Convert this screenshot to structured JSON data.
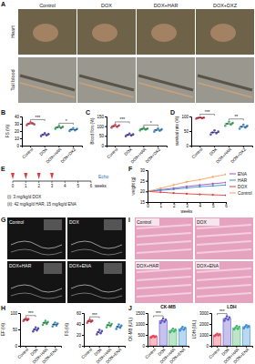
{
  "figure": {
    "panel_labels": [
      "A",
      "B",
      "C",
      "D",
      "E",
      "F",
      "G",
      "H",
      "I",
      "J"
    ],
    "zebrafish": {
      "columns": [
        "Control",
        "DOX",
        "DOX+HAR",
        "DOX+DXZ"
      ],
      "rows": [
        "Heart",
        "Tail blood"
      ]
    },
    "schedule": {
      "ticks": [
        0,
        1,
        2,
        3,
        4,
        5,
        6
      ],
      "xlabel": "weeks",
      "dox_weeks": [
        0,
        1,
        2,
        3
      ],
      "end_label": "Echo",
      "notes": [
        "(i): 3 mg/kg/d DOX",
        "(ii): 42 mg/kg/d HAR, 15 mg/kg/d ENA"
      ]
    },
    "echo": {
      "labels": [
        "Control",
        "DOX",
        "DOX+HAR",
        "DOX+ENA"
      ]
    },
    "histology": {
      "labels": [
        "Control",
        "DOX",
        "DOX+HAR",
        "DOX+ENA"
      ]
    }
  },
  "chart_data": [
    {
      "type": "dot",
      "ylabel": "FS (%)",
      "categories": [
        "Control",
        "DOX",
        "DOX+HAR",
        "DOX+DXZ"
      ],
      "values": [
        30,
        15,
        25,
        22
      ],
      "points": [
        [
          28,
          30,
          32,
          31,
          29
        ],
        [
          13,
          15,
          17,
          14,
          16
        ],
        [
          23,
          25,
          27,
          24,
          26
        ],
        [
          20,
          22,
          24,
          21,
          23
        ]
      ],
      "colors": [
        "#e8455a",
        "#5b4fc7",
        "#3fb56b",
        "#3a8fd6"
      ],
      "ylim": [
        0,
        40
      ],
      "yticks": [
        0,
        10,
        20,
        30,
        40
      ],
      "annotations": [
        {
          "text": "***",
          "between": [
            0,
            1
          ]
        },
        {
          "text": "*",
          "between": [
            2,
            3
          ]
        }
      ]
    },
    {
      "type": "dot",
      "ylabel": "Blood flow (%)",
      "categories": [
        "Control",
        "DOX",
        "DOX+HAR",
        "DOX+DXZ"
      ],
      "values": [
        100,
        55,
        85,
        80
      ],
      "points": [
        [
          92,
          100,
          108,
          96,
          104
        ],
        [
          48,
          55,
          62,
          52,
          58
        ],
        [
          78,
          85,
          92,
          82,
          88
        ],
        [
          72,
          80,
          88,
          76,
          84
        ]
      ],
      "colors": [
        "#e8455a",
        "#5b4fc7",
        "#3fb56b",
        "#3a8fd6"
      ],
      "ylim": [
        0,
        150
      ],
      "yticks": [
        0,
        50,
        100,
        150
      ],
      "annotations": [
        {
          "text": "***",
          "between": [
            0,
            1
          ]
        },
        {
          "text": "*",
          "between": [
            2,
            3
          ]
        }
      ]
    },
    {
      "type": "dot",
      "ylabel": "survival rate (%)",
      "categories": [
        "Control",
        "DOX",
        "DOX+HAR",
        "DOX+DXZ"
      ],
      "values": [
        95,
        45,
        75,
        65
      ],
      "points": [
        [
          92,
          95,
          98,
          94,
          96
        ],
        [
          38,
          45,
          52,
          42,
          48
        ],
        [
          68,
          75,
          82,
          72,
          78
        ],
        [
          58,
          65,
          72,
          62,
          68
        ]
      ],
      "colors": [
        "#e8455a",
        "#5b4fc7",
        "#3fb56b",
        "#3a8fd6"
      ],
      "ylim": [
        0,
        100
      ],
      "yticks": [
        0,
        50,
        100
      ],
      "annotations": [
        {
          "text": "***",
          "between": [
            0,
            1
          ]
        },
        {
          "text": "**",
          "between": [
            2,
            3
          ]
        }
      ]
    },
    {
      "type": "line",
      "ylabel": "weight (g)",
      "xlabel": "weeks",
      "x": [
        0,
        1,
        2,
        3,
        4,
        5,
        6
      ],
      "xlim": [
        0,
        6
      ],
      "xticks": [
        0,
        1,
        2,
        3,
        4,
        5,
        6
      ],
      "ylim": [
        15,
        30
      ],
      "yticks": [
        15,
        20,
        25,
        30
      ],
      "legend": "right",
      "marker": "circle",
      "series": [
        {
          "name": "ENA",
          "color": "#9b59b6",
          "values": [
            20,
            20.8,
            21.5,
            22.3,
            23,
            23.6,
            24.2
          ]
        },
        {
          "name": "HAR",
          "color": "#3a8fd6",
          "values": [
            20,
            20.5,
            21,
            21.6,
            22.2,
            22.6,
            23
          ]
        },
        {
          "name": "DOX",
          "color": "#e03c3c",
          "values": [
            20,
            19.6,
            19.2,
            18.9,
            18.6,
            18.4,
            18.2
          ]
        },
        {
          "name": "Control",
          "color": "#f4a261",
          "values": [
            20,
            21.5,
            23,
            24.5,
            25.5,
            26.8,
            28
          ]
        }
      ]
    },
    {
      "type": "dot",
      "ylabel": "EF (%)",
      "categories": [
        "Control",
        "DOX",
        "DOX+HAR",
        "DOX+ENA"
      ],
      "values": [
        80,
        50,
        70,
        65
      ],
      "points": [
        [
          76,
          80,
          84,
          78,
          82
        ],
        [
          44,
          50,
          56,
          47,
          53
        ],
        [
          64,
          70,
          76,
          67,
          73
        ],
        [
          59,
          65,
          71,
          62,
          68
        ]
      ],
      "colors": [
        "#e8455a",
        "#5b4fc7",
        "#3fb56b",
        "#3a8fd6"
      ],
      "ylim": [
        0,
        100
      ],
      "yticks": [
        0,
        50,
        100
      ],
      "annotations": [
        {
          "text": "***",
          "between": [
            0,
            1
          ]
        }
      ]
    },
    {
      "type": "dot",
      "ylabel": "FS (%)",
      "categories": [
        "Control",
        "DOX",
        "DOX+HAR",
        "DOX+ENA"
      ],
      "values": [
        45,
        25,
        38,
        35
      ],
      "points": [
        [
          42,
          45,
          48,
          44,
          46
        ],
        [
          21,
          25,
          29,
          23,
          27
        ],
        [
          34,
          38,
          42,
          36,
          40
        ],
        [
          31,
          35,
          39,
          33,
          37
        ]
      ],
      "colors": [
        "#e8455a",
        "#5b4fc7",
        "#3fb56b",
        "#3a8fd6"
      ],
      "ylim": [
        0,
        60
      ],
      "yticks": [
        0,
        20,
        40,
        60
      ],
      "annotations": [
        {
          "text": "***",
          "between": [
            0,
            1
          ]
        }
      ]
    },
    {
      "type": "bar",
      "title": "CK-MB",
      "ylabel": "CK-MB (U/L)",
      "categories": [
        "Control",
        "DOX",
        "DOX+HAR",
        "DOX+ENA"
      ],
      "values": [
        420,
        1150,
        700,
        780
      ],
      "points": [
        [
          380,
          420,
          460,
          400,
          440
        ],
        [
          1050,
          1150,
          1250,
          1100,
          1200
        ],
        [
          620,
          700,
          780,
          660,
          740
        ],
        [
          700,
          780,
          860,
          740,
          820
        ]
      ],
      "colors": [
        "#e8455a",
        "#5b4fc7",
        "#3fb56b",
        "#3a8fd6"
      ],
      "ylim": [
        0,
        1500
      ],
      "yticks": [
        0,
        500,
        1000,
        1500
      ],
      "annotations": [
        {
          "text": "***",
          "between": [
            0,
            1
          ]
        }
      ]
    },
    {
      "type": "bar",
      "title": "LDH",
      "ylabel": "LDH (U/L)",
      "categories": [
        "Control",
        "DOX",
        "DOX+HAR",
        "DOX+ENA"
      ],
      "values": [
        1000,
        2500,
        1650,
        1750
      ],
      "points": [
        [
          900,
          1000,
          1100,
          950,
          1050
        ],
        [
          2300,
          2500,
          2700,
          2400,
          2600
        ],
        [
          1500,
          1650,
          1800,
          1550,
          1750
        ],
        [
          1600,
          1750,
          1900,
          1700,
          1800
        ]
      ],
      "colors": [
        "#e8455a",
        "#5b4fc7",
        "#3fb56b",
        "#3a8fd6"
      ],
      "ylim": [
        0,
        3000
      ],
      "yticks": [
        0,
        1000,
        2000,
        3000
      ],
      "annotations": [
        {
          "text": "***",
          "between": [
            0,
            1
          ]
        }
      ]
    }
  ]
}
